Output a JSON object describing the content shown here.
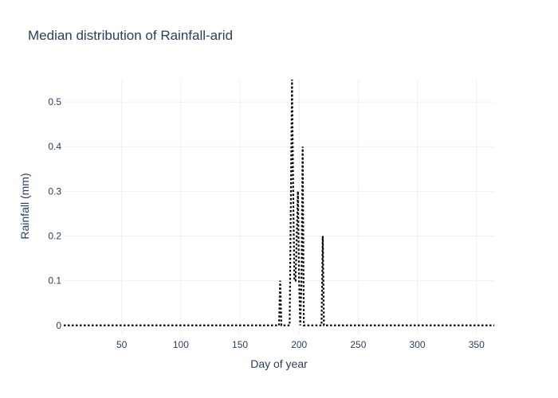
{
  "chart_data": {
    "type": "line",
    "title": "Median distribution of Rainfall-arid",
    "xlabel": "Day of year",
    "ylabel": "Rainfall (mm)",
    "xlim": [
      1,
      365
    ],
    "ylim": [
      -0.02,
      0.55
    ],
    "x_ticks": [
      50,
      100,
      150,
      200,
      250,
      300,
      350
    ],
    "y_ticks": [
      0,
      0.1,
      0.2,
      0.3,
      0.4,
      0.5
    ],
    "y_tick_labels": [
      "0",
      "0.1",
      "0.2",
      "0.3",
      "0.4",
      "0.5"
    ],
    "grid": true,
    "line_style": "dotted",
    "line_color": "#000000",
    "series": [
      {
        "x": [
          1,
          182,
          183,
          184,
          185,
          192,
          193,
          194,
          195,
          196,
          197,
          198,
          199,
          200,
          201,
          202,
          203,
          204,
          205,
          218,
          219,
          220,
          221,
          365
        ],
        "values": [
          0,
          0,
          0,
          0.1,
          0,
          0,
          0.27,
          0.55,
          0.3,
          0.1,
          0.1,
          0.2,
          0.3,
          0.1,
          0,
          0.1,
          0.4,
          0,
          0,
          0,
          0,
          0.2,
          0,
          0
        ]
      }
    ]
  }
}
